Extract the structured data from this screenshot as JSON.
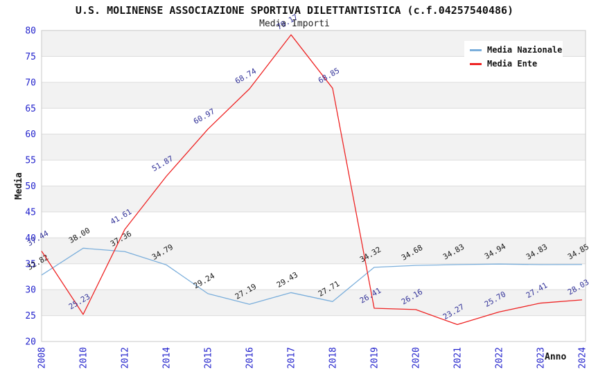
{
  "title": "U.S. MOLINENSE ASSOCIAZIONE SPORTIVA DILETTANTISTICA (c.f.04257540486)",
  "subtitle": "Media Importi",
  "chart_data": {
    "type": "line",
    "title": "U.S. MOLINENSE ASSOCIAZIONE SPORTIVA DILETTANTISTICA (c.f.04257540486)",
    "subtitle": "Media Importi",
    "xlabel": "Anno",
    "ylabel": "Media",
    "categories": [
      "2008",
      "2010",
      "2012",
      "2014",
      "2015",
      "2016",
      "2017",
      "2018",
      "2019",
      "2020",
      "2021",
      "2022",
      "2023",
      "2024"
    ],
    "series": [
      {
        "name": "Media Nazionale",
        "color": "#7aaedb",
        "label_color": "#1a1a1a",
        "values": [
          32.82,
          38.0,
          37.36,
          34.79,
          29.24,
          27.19,
          29.43,
          27.71,
          34.32,
          34.68,
          34.83,
          34.94,
          34.83,
          34.85
        ]
      },
      {
        "name": "Media Ente",
        "color": "#ee2222",
        "label_color": "#333399",
        "values": [
          37.44,
          25.23,
          41.61,
          51.87,
          60.97,
          68.74,
          79.17,
          68.85,
          26.41,
          26.16,
          23.27,
          25.7,
          27.41,
          28.03
        ]
      }
    ],
    "ylim": [
      20,
      80
    ],
    "ytick_step": 5,
    "yticks": [
      20,
      25,
      30,
      35,
      40,
      45,
      50,
      55,
      60,
      65,
      70,
      75,
      80
    ],
    "grid": "horizontal-bands",
    "band_color": "#f2f2f2",
    "gridline_color": "#dcdcdc",
    "axis_tick_color": "#2222cc",
    "legend_position": "top-right"
  }
}
